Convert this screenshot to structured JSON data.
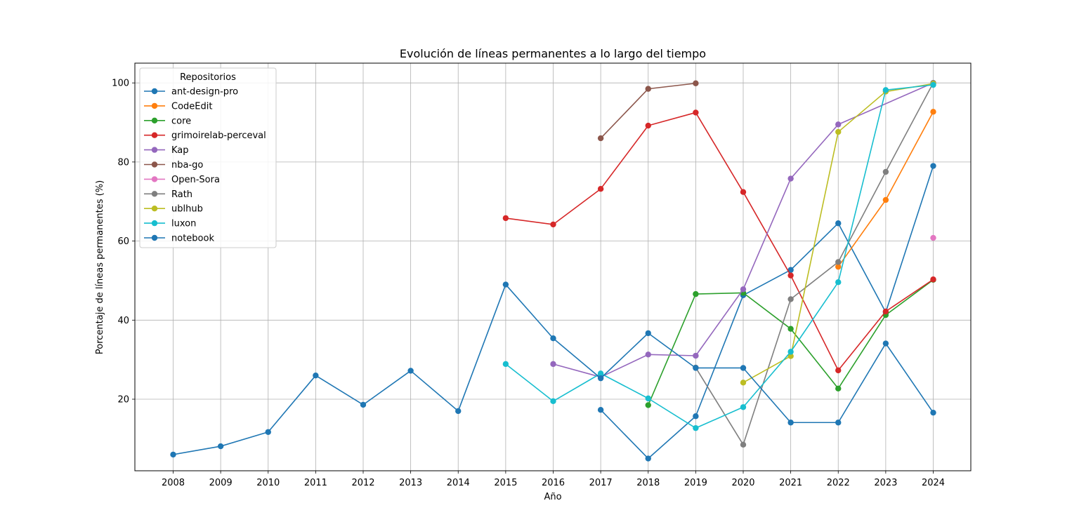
{
  "chart_data": {
    "type": "line",
    "title": "Evolución de líneas permanentes a lo largo del tiempo",
    "xlabel": "Año",
    "ylabel": "Porcentaje de líneas permanentes (%)",
    "x": [
      2008,
      2009,
      2010,
      2011,
      2012,
      2013,
      2014,
      2015,
      2016,
      2017,
      2018,
      2019,
      2020,
      2021,
      2022,
      2023,
      2024
    ],
    "y_ticks": [
      20,
      40,
      60,
      80,
      100
    ],
    "ylim": [
      1.9,
      105.0
    ],
    "grid": true,
    "legend": {
      "title": "Repositorios",
      "placement": "top-left"
    },
    "series": [
      {
        "name": "ant-design-pro",
        "color": "#1f77b4",
        "points": [
          [
            2017,
            17.3
          ],
          [
            2018,
            5.0
          ],
          [
            2019,
            15.7
          ],
          [
            2020,
            46.3
          ],
          [
            2021,
            52.7
          ],
          [
            2022,
            64.5
          ],
          [
            2023,
            42.0
          ],
          [
            2024,
            79.0
          ]
        ]
      },
      {
        "name": "CodeEdit",
        "color": "#ff7f0e",
        "points": [
          [
            2022,
            53.5
          ],
          [
            2023,
            70.4
          ],
          [
            2024,
            92.7
          ]
        ]
      },
      {
        "name": "core",
        "color": "#2ca02c",
        "points": [
          [
            2018,
            18.5
          ],
          [
            2019,
            46.6
          ],
          [
            2020,
            46.9
          ],
          [
            2021,
            37.8
          ],
          [
            2022,
            22.7
          ],
          [
            2023,
            41.3
          ],
          [
            2024,
            50.2
          ]
        ]
      },
      {
        "name": "grimoirelab-perceval",
        "color": "#d62728",
        "points": [
          [
            2015,
            65.8
          ],
          [
            2016,
            64.2
          ],
          [
            2017,
            73.2
          ],
          [
            2018,
            89.2
          ],
          [
            2019,
            92.5
          ],
          [
            2020,
            72.4
          ],
          [
            2021,
            51.3
          ],
          [
            2022,
            27.3
          ],
          [
            2023,
            42.2
          ],
          [
            2024,
            50.3
          ]
        ]
      },
      {
        "name": "Kap",
        "color": "#9467bd",
        "points": [
          [
            2016,
            28.9
          ],
          [
            2017,
            25.6
          ],
          [
            2018,
            31.3
          ],
          [
            2019,
            31.0
          ],
          [
            2020,
            47.8
          ],
          [
            2021,
            75.8
          ],
          [
            2022,
            89.5
          ],
          [
            2024,
            100.0
          ]
        ]
      },
      {
        "name": "nba-go",
        "color": "#8c564b",
        "points": [
          [
            2017,
            86.0
          ],
          [
            2018,
            98.5
          ],
          [
            2019,
            99.9
          ]
        ]
      },
      {
        "name": "Open-Sora",
        "color": "#e377c2",
        "points": [
          [
            2024,
            60.8
          ]
        ]
      },
      {
        "name": "Rath",
        "color": "#7f7f7f",
        "points": [
          [
            2019,
            28.0
          ],
          [
            2020,
            8.5
          ],
          [
            2021,
            45.3
          ],
          [
            2022,
            54.7
          ],
          [
            2023,
            77.5
          ],
          [
            2024,
            100.0
          ]
        ]
      },
      {
        "name": "ublhub",
        "color": "#bcbd22",
        "points": [
          [
            2020,
            24.2
          ],
          [
            2021,
            30.9
          ],
          [
            2022,
            87.6
          ],
          [
            2023,
            97.8
          ],
          [
            2024,
            99.8
          ]
        ]
      },
      {
        "name": "luxon",
        "color": "#17becf",
        "points": [
          [
            2015,
            28.9
          ],
          [
            2016,
            19.5
          ],
          [
            2017,
            26.5
          ],
          [
            2018,
            20.2
          ],
          [
            2019,
            12.7
          ],
          [
            2020,
            18.0
          ],
          [
            2021,
            32.0
          ],
          [
            2022,
            49.6
          ],
          [
            2023,
            98.2
          ],
          [
            2024,
            99.5
          ]
        ]
      },
      {
        "name": "notebook",
        "color": "#1f77b4",
        "points": [
          [
            2008,
            6.0
          ],
          [
            2009,
            8.1
          ],
          [
            2010,
            11.7
          ],
          [
            2011,
            26.0
          ],
          [
            2012,
            18.6
          ],
          [
            2013,
            27.2
          ],
          [
            2014,
            17.0
          ],
          [
            2015,
            49.0
          ],
          [
            2016,
            35.4
          ],
          [
            2017,
            25.3
          ],
          [
            2018,
            36.7
          ],
          [
            2019,
            27.9
          ],
          [
            2020,
            27.9
          ],
          [
            2021,
            14.1
          ],
          [
            2022,
            14.1
          ],
          [
            2023,
            34.1
          ],
          [
            2024,
            16.6
          ]
        ]
      }
    ]
  }
}
